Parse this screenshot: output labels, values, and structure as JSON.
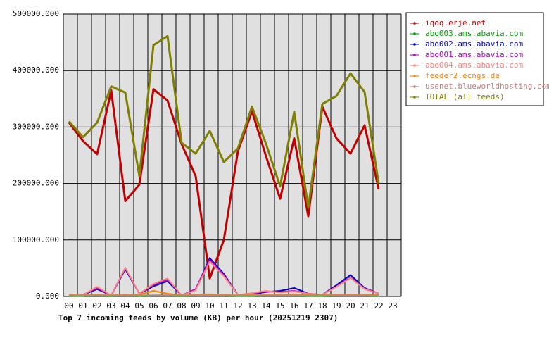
{
  "chart_data": {
    "type": "line",
    "title": "Top 7 incoming feeds by volume (KB) per hour (20251219 2307)",
    "categories": [
      "00",
      "01",
      "02",
      "03",
      "04",
      "05",
      "06",
      "07",
      "08",
      "09",
      "10",
      "11",
      "12",
      "13",
      "14",
      "15",
      "16",
      "17",
      "18",
      "19",
      "20",
      "21",
      "22",
      "23"
    ],
    "ylim": [
      0,
      500000
    ],
    "yticks": [
      {
        "value": 0,
        "label": "0.000"
      },
      {
        "value": 100000,
        "label": "100000.000"
      },
      {
        "value": 200000,
        "label": "200000.000"
      },
      {
        "value": 300000,
        "label": "300000.000"
      },
      {
        "value": 400000,
        "label": "400000.000"
      },
      {
        "value": 500000,
        "label": "500000.000"
      }
    ],
    "grid": true,
    "legend": "right",
    "series": [
      {
        "name": "iqoq.erje.net",
        "color": "#c00000",
        "values": [
          308000,
          275000,
          252000,
          365000,
          169000,
          198000,
          367000,
          347000,
          270000,
          213000,
          32000,
          100000,
          257000,
          328000,
          248000,
          173000,
          280000,
          142000,
          336000,
          280000,
          253000,
          303000,
          190000,
          null
        ]
      },
      {
        "name": "abo003.ams.abavia.com",
        "color": "#00a000",
        "values": [
          1000,
          1000,
          2000,
          1000,
          3000,
          1000,
          2000,
          2000,
          1000,
          2000,
          3000,
          2000,
          1000,
          1000,
          2000,
          2000,
          2000,
          1000,
          1000,
          2000,
          3000,
          2000,
          1000,
          null
        ]
      },
      {
        "name": "abo002.ams.abavia.com",
        "color": "#0000c0",
        "values": [
          2000,
          3000,
          13000,
          2000,
          48000,
          5000,
          18000,
          27000,
          2000,
          12000,
          68000,
          40000,
          3000,
          4000,
          8000,
          10000,
          15000,
          5000,
          3000,
          20000,
          38000,
          15000,
          5000,
          null
        ]
      },
      {
        "name": "abo001.ams.abavia.com",
        "color": "#b000d0",
        "values": [
          2000,
          3000,
          15000,
          2000,
          50000,
          5000,
          20000,
          30000,
          2000,
          13000,
          65000,
          38000,
          3000,
          5000,
          9000,
          8000,
          10000,
          5000,
          3000,
          18000,
          34000,
          14000,
          5000,
          null
        ]
      },
      {
        "name": "abo004.ams.abavia.com",
        "color": "#ff8080",
        "values": [
          2000,
          3000,
          17000,
          2000,
          51000,
          5000,
          22000,
          32000,
          2000,
          11000,
          62000,
          36000,
          3000,
          6000,
          10000,
          7000,
          9000,
          5000,
          3000,
          17000,
          33000,
          13000,
          5000,
          null
        ]
      },
      {
        "name": "feeder2.ecngs.de",
        "color": "#ff8000",
        "values": [
          3000,
          2000,
          3000,
          2000,
          3000,
          3000,
          10000,
          5000,
          2000,
          3000,
          4000,
          3000,
          2000,
          3000,
          3000,
          3000,
          4000,
          3000,
          3000,
          3000,
          3000,
          3000,
          3000,
          null
        ]
      },
      {
        "name": "usenet.blueworldhosting.com",
        "color": "#c08080",
        "values": [
          2000,
          2000,
          2000,
          2000,
          2000,
          2000,
          2000,
          2000,
          2000,
          2000,
          2000,
          2000,
          2000,
          2000,
          2000,
          2000,
          2000,
          2000,
          2000,
          2000,
          2000,
          2000,
          2000,
          null
        ]
      },
      {
        "name": "TOTAL (all feeds)",
        "color": "#808000",
        "values": [
          310000,
          282000,
          308000,
          372000,
          361000,
          213000,
          445000,
          461000,
          272000,
          253000,
          293000,
          238000,
          262000,
          336000,
          270000,
          195000,
          327000,
          157000,
          341000,
          355000,
          395000,
          362000,
          200000,
          null
        ]
      }
    ]
  }
}
